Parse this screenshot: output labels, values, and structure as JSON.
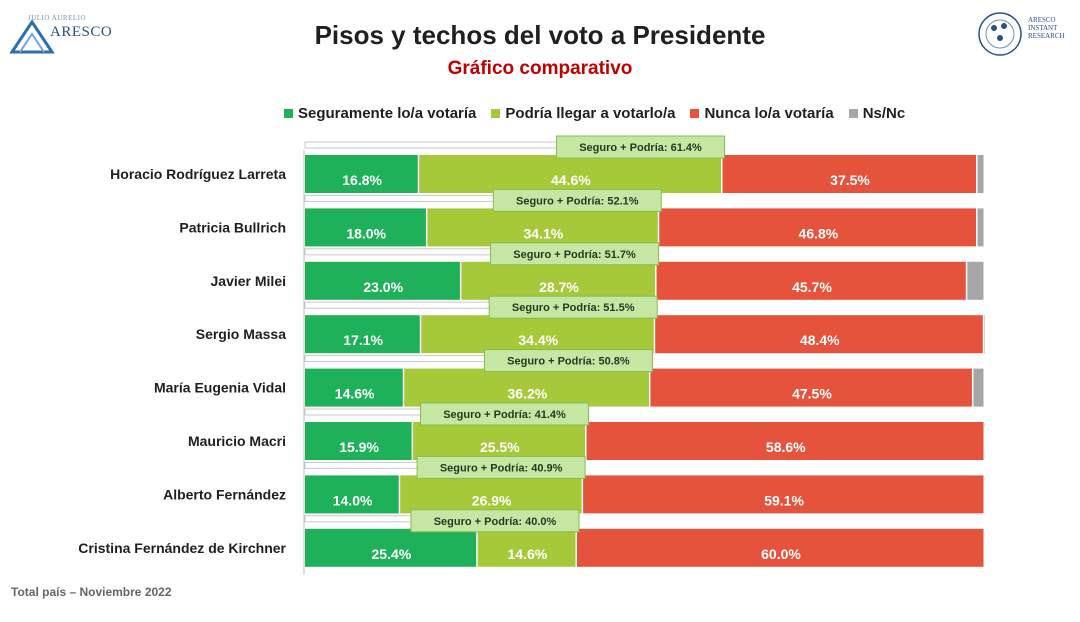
{
  "header": {
    "logo_left_top": "JULIO AURELIO",
    "logo_left_name": "ARESCO",
    "logo_right_text": [
      "ARESCO",
      "INSTANT",
      "RESEARCH"
    ]
  },
  "colors": {
    "seguro": "#1fb05a",
    "podria": "#a6c93a",
    "nunca": "#e6533c",
    "nsnc": "#a6a6a6",
    "box_fill": "#c6e7a3",
    "box_stroke": "#7fbf4d"
  },
  "chart_data": {
    "type": "bar",
    "orientation": "horizontal",
    "stacked": true,
    "title": "Pisos y techos del voto a Presidente",
    "subtitle": "Gráfico comparativo",
    "categories": [
      "Horacio Rodríguez Larreta",
      "Patricia Bullrich",
      "Javier Milei",
      "Sergio Massa",
      "María Eugenia Vidal",
      "Mauricio Macri",
      "Alberto Fernández",
      "Cristina Fernández de Kirchner"
    ],
    "series": [
      {
        "name": "Seguramente lo/a votaría",
        "color_key": "seguro",
        "values": [
          16.8,
          18.0,
          23.0,
          17.1,
          14.6,
          15.9,
          14.0,
          25.4
        ]
      },
      {
        "name": "Podría llegar a votarlo/a",
        "color_key": "podria",
        "values": [
          44.6,
          34.1,
          28.7,
          34.4,
          36.2,
          25.5,
          26.9,
          14.6
        ]
      },
      {
        "name": "Nunca lo/a votaría",
        "color_key": "nunca",
        "values": [
          37.5,
          46.8,
          45.7,
          48.4,
          47.5,
          58.6,
          59.1,
          60.0
        ]
      },
      {
        "name": "Ns/Nc",
        "color_key": "nsnc",
        "values": [
          1.1,
          1.1,
          2.6,
          0.1,
          1.7,
          0.0,
          0.0,
          0.0
        ]
      }
    ],
    "value_labels": [
      [
        "16.8%",
        "44.6%",
        "37.5%"
      ],
      [
        "18.0%",
        "34.1%",
        "46.8%"
      ],
      [
        "23.0%",
        "28.7%",
        "45.7%"
      ],
      [
        "17.1%",
        "34.4%",
        "48.4%"
      ],
      [
        "14.6%",
        "36.2%",
        "47.5%"
      ],
      [
        "15.9%",
        "25.5%",
        "58.6%"
      ],
      [
        "14.0%",
        "26.9%",
        "59.1%"
      ],
      [
        "25.4%",
        "14.6%",
        "60.0%"
      ]
    ],
    "combined_labels": [
      "Seguro + Podría: 61.4%",
      "Seguro + Podría: 52.1%",
      "Seguro + Podría: 51.7%",
      "Seguro + Podría: 51.5%",
      "Seguro + Podría: 50.8%",
      "Seguro + Podría: 41.4%",
      "Seguro + Podría: 40.9%",
      "Seguro + Podría: 40.0%"
    ],
    "combined_values": [
      61.4,
      52.1,
      51.7,
      51.5,
      50.8,
      41.4,
      40.9,
      40.0
    ],
    "xlim": [
      0,
      100
    ],
    "legend_position": "top",
    "grid": false
  },
  "footer": "Total país – Noviembre 2022"
}
